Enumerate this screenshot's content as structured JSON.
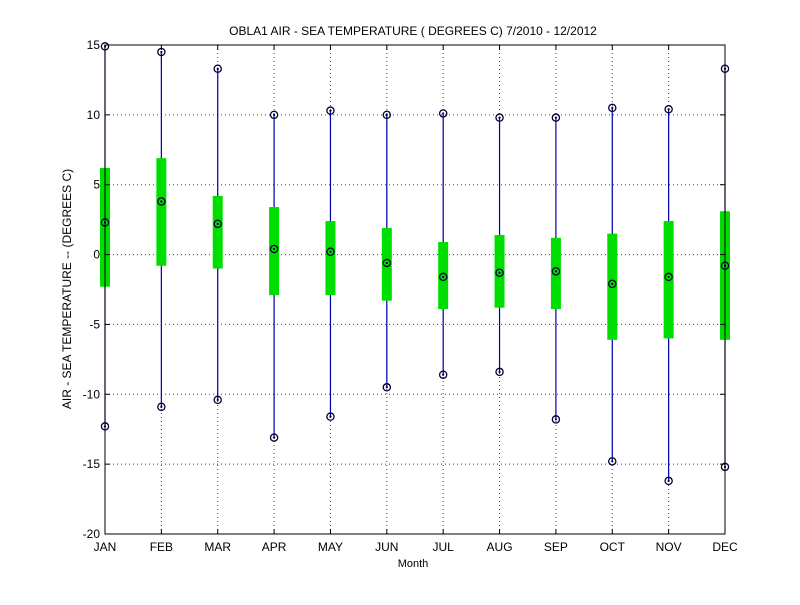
{
  "chart_data": {
    "type": "box",
    "title": "OBLA1  AIR - SEA TEMPERATURE ( DEGREES C) 7/2010 - 12/2012",
    "xlabel": "Month",
    "ylabel": "AIR - SEA TEMPERATURE -- (DEGREES C)",
    "ylim": [
      -20,
      15
    ],
    "yticks": [
      -20,
      -15,
      -10,
      -5,
      0,
      5,
      10,
      15
    ],
    "grid": true,
    "categories": [
      "JAN",
      "FEB",
      "MAR",
      "APR",
      "MAY",
      "JUN",
      "JUL",
      "AUG",
      "SEP",
      "OCT",
      "NOV",
      "DEC"
    ],
    "series": [
      {
        "max": [
          14.9,
          14.5,
          13.3,
          10.0,
          10.3,
          10.0,
          10.1,
          9.8,
          9.8,
          10.5,
          10.4,
          13.3
        ],
        "q3": [
          6.2,
          6.9,
          4.2,
          3.4,
          2.4,
          1.9,
          0.9,
          1.4,
          1.2,
          1.5,
          2.4,
          3.1
        ],
        "median": [
          2.3,
          3.8,
          2.2,
          0.4,
          0.2,
          -0.6,
          -1.6,
          -1.3,
          -1.2,
          -2.1,
          -1.6,
          -0.8
        ],
        "q1": [
          -2.3,
          -0.8,
          -1.0,
          -2.9,
          -2.9,
          -3.3,
          -3.9,
          -3.8,
          -3.9,
          -6.1,
          -6.0,
          -6.1
        ],
        "min": [
          -12.3,
          -10.9,
          -10.4,
          -13.1,
          -11.6,
          -9.5,
          -8.6,
          -8.4,
          -11.8,
          -14.8,
          -16.2,
          -15.2
        ]
      }
    ],
    "colors": {
      "whisker": "#0000aa",
      "box": "#00dd00",
      "marker": "#000033",
      "grid": "#444444",
      "axis": "#000000"
    }
  }
}
